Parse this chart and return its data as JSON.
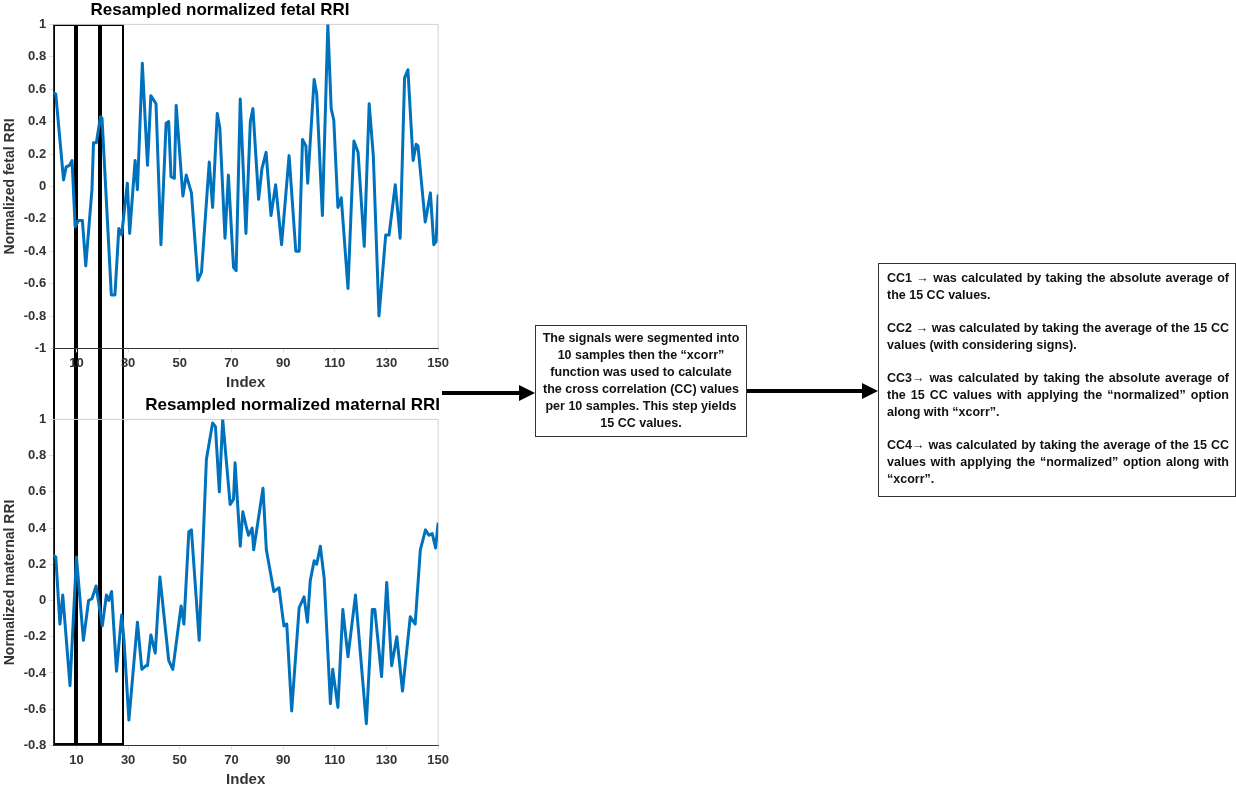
{
  "chart_data": [
    {
      "type": "line",
      "title": "Resampled normalized fetal RRI",
      "xlabel": "Index",
      "ylabel": "Normalized fetal RRI",
      "xlim": [
        1,
        150
      ],
      "xticks": [
        10,
        30,
        50,
        70,
        90,
        110,
        130,
        150
      ],
      "ylim": [
        -1,
        1
      ],
      "yticks": [
        -1,
        -0.8,
        -0.6,
        -0.4,
        -0.2,
        0,
        0.2,
        0.4,
        0.6,
        0.8,
        1
      ],
      "grid": false,
      "series": [
        {
          "color": "#0072bd",
          "x": [
            1,
            2,
            5,
            6,
            7.3,
            8.3,
            9.5,
            10.8,
            12.3,
            13.6,
            16,
            16.6,
            17.7,
            19.3,
            19.9,
            23.5,
            24.9,
            26.4,
            27.5,
            29.7,
            30.6,
            32.7,
            33.6,
            35.5,
            37.5,
            38.8,
            40.8,
            42.7,
            44.7,
            45.7,
            46.6,
            47.9,
            48.6,
            51.2,
            52.5,
            54.5,
            57,
            58.4,
            61.4,
            62.7,
            64.5,
            65.5,
            67.5,
            68.8,
            70.8,
            71.8,
            73.4,
            75.6,
            77.3,
            78.3,
            80.5,
            81.8,
            83.4,
            85.3,
            87.1,
            89.4,
            92.3,
            94.9,
            96.2,
            97.5,
            98.8,
            99.5,
            102,
            103,
            105.2,
            107.3,
            108.6,
            109.6,
            111.2,
            112.5,
            115.1,
            117.4,
            119,
            121.4,
            123.3,
            124.9,
            127.1,
            129.7,
            131,
            133.4,
            135.3,
            137,
            138.3,
            140.3,
            141.5,
            142.2,
            145,
            147,
            148.3,
            149.2,
            150
          ],
          "values": [
            0.58,
            0.57,
            0.04,
            0.12,
            0.13,
            0.16,
            -0.25,
            -0.21,
            -0.21,
            -0.49,
            -0.02,
            0.27,
            0.27,
            0.43,
            0.42,
            -0.67,
            -0.67,
            -0.26,
            -0.3,
            0.02,
            -0.29,
            0.16,
            -0.02,
            0.76,
            0.13,
            0.56,
            0.51,
            -0.36,
            0.39,
            0.4,
            0.06,
            0.05,
            0.5,
            -0.06,
            0.07,
            -0.04,
            -0.58,
            -0.53,
            0.15,
            -0.13,
            0.45,
            0.36,
            -0.32,
            0.07,
            -0.5,
            -0.52,
            0.54,
            -0.29,
            0.4,
            0.48,
            -0.08,
            0.11,
            0.21,
            -0.18,
            0.01,
            -0.36,
            0.19,
            -0.4,
            -0.4,
            0.29,
            0.25,
            0.02,
            0.66,
            0.57,
            -0.18,
            1,
            0.48,
            0.41,
            -0.13,
            -0.07,
            -0.63,
            0.28,
            0.21,
            -0.37,
            0.51,
            0.19,
            -0.8,
            -0.3,
            -0.3,
            0.01,
            -0.32,
            0.67,
            0.72,
            0.16,
            0.26,
            0.25,
            -0.22,
            -0.04,
            -0.36,
            -0.34,
            -0.05
          ]
        }
      ]
    },
    {
      "type": "line",
      "title": "Resampled normalized maternal RRI",
      "xlabel": "Index",
      "ylabel": "Normalized maternal RRI",
      "xlim": [
        1,
        150
      ],
      "xticks": [
        10,
        30,
        50,
        70,
        90,
        110,
        130,
        150
      ],
      "ylim": [
        -0.8,
        1
      ],
      "yticks": [
        -0.8,
        -0.6,
        -0.4,
        -0.2,
        0,
        0.2,
        0.4,
        0.6,
        0.8,
        1
      ],
      "grid": false,
      "series": [
        {
          "color": "#0072bd",
          "x": [
            1,
            2,
            3.6,
            4.7,
            7.5,
            10,
            12.7,
            14.7,
            16,
            17.6,
            20,
            21.6,
            22.5,
            23.6,
            25.5,
            27.5,
            28.4,
            30.3,
            33.6,
            35.3,
            36.9,
            37.5,
            38.8,
            40.5,
            42.3,
            45.7,
            47.3,
            50.5,
            51.6,
            53.5,
            54.5,
            57.5,
            60.3,
            62.7,
            63.8,
            65.3,
            66.6,
            69.5,
            70.8,
            71.4,
            73.4,
            74.4,
            75.7,
            76.6,
            78,
            78.6,
            82.2,
            83.5,
            86.4,
            88.4,
            90.3,
            91.4,
            93.3,
            96.2,
            98.1,
            99.4,
            100.5,
            102,
            103,
            104.4,
            105.9,
            108.3,
            109.2,
            111.2,
            113.1,
            115.1,
            118,
            122.2,
            124.5,
            125.5,
            128.1,
            130.1,
            132,
            134,
            136.2,
            139.2,
            141.1,
            143.1,
            145.1,
            146.4,
            147.7,
            149,
            150
          ],
          "values": [
            0.25,
            0.24,
            -0.13,
            0.03,
            -0.47,
            0.24,
            -0.22,
            0,
            0.01,
            0.08,
            -0.14,
            0.03,
            0,
            0.05,
            -0.39,
            -0.08,
            -0.22,
            -0.66,
            -0.12,
            -0.38,
            -0.36,
            -0.36,
            -0.19,
            -0.29,
            0.13,
            -0.33,
            -0.38,
            -0.03,
            -0.13,
            0.38,
            0.39,
            -0.22,
            0.78,
            0.98,
            0.96,
            0.6,
            1,
            0.53,
            0.56,
            0.76,
            0.3,
            0.49,
            0.41,
            0.36,
            0.4,
            0.28,
            0.62,
            0.28,
            0.05,
            0.07,
            -0.14,
            -0.13,
            -0.61,
            -0.04,
            0.02,
            -0.12,
            0.11,
            0.22,
            0.2,
            0.3,
            0.12,
            -0.57,
            -0.38,
            -0.59,
            -0.05,
            -0.31,
            0.03,
            -0.68,
            -0.05,
            -0.05,
            -0.42,
            0.1,
            -0.36,
            -0.2,
            -0.5,
            -0.09,
            -0.13,
            0.28,
            0.39,
            0.36,
            0.37,
            0.29,
            0.43
          ]
        }
      ]
    },
    {
      "type": "other",
      "annotations": [
        "The signals were segmented into 10 samples then the “xcorr” function was used to calculate the cross correlation (CC) values per 10 samples.  This step yields 15 CC values."
      ]
    },
    {
      "type": "other",
      "annotations": [
        "CC1 → was calculated by taking the absolute average of the 15 CC values.",
        "CC2 → was calculated by taking the average of the 15 CC values (with considering signs).",
        "CC3→ was calculated by taking the absolute average of the 15 CC values with applying the “normalized” option along with “xcorr”.",
        "CC4→ was calculated by taking the average of the 15 CC values with applying the “normalized” option along with “xcorr”."
      ]
    }
  ]
}
